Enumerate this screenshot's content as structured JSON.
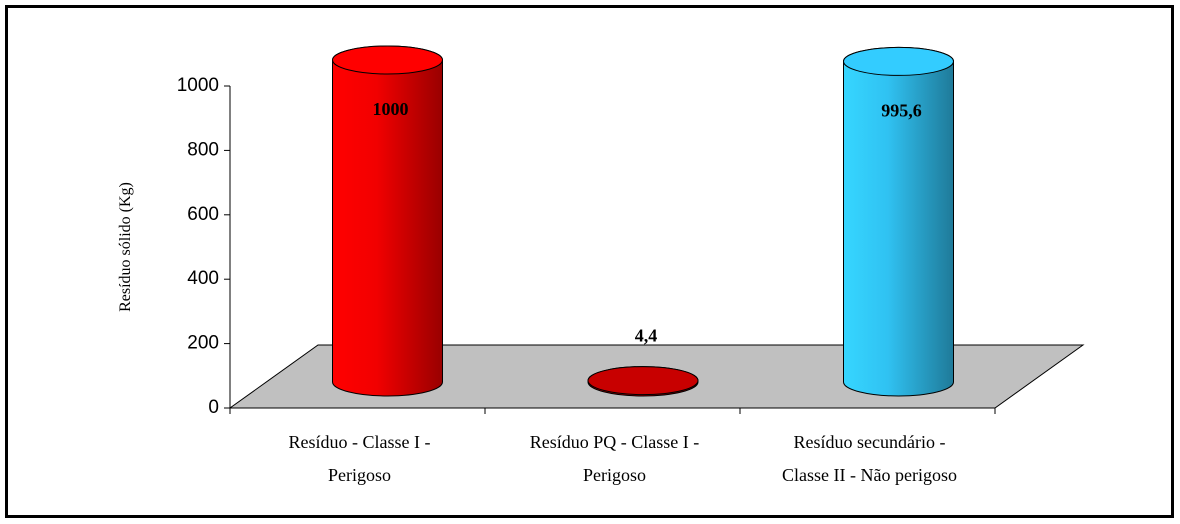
{
  "chart_data": {
    "type": "bar3d",
    "y_label": "Resíduo sólido (Kg)",
    "categories": [
      "Resíduo - Classe I -\nPerigoso",
      "Resíduo PQ - Classe I -\nPerigoso",
      "Resíduo secundário -\nClasse II - Não perigoso"
    ],
    "values": [
      1000,
      4.4,
      995.6
    ],
    "value_labels": [
      "1000",
      "4,4",
      "995,6"
    ],
    "colors": [
      "#ff0000",
      "#c80000",
      "#33ccff"
    ],
    "ylim": [
      0,
      1000
    ],
    "yticks": [
      0,
      200,
      400,
      600,
      800,
      1000
    ],
    "grid": false
  }
}
